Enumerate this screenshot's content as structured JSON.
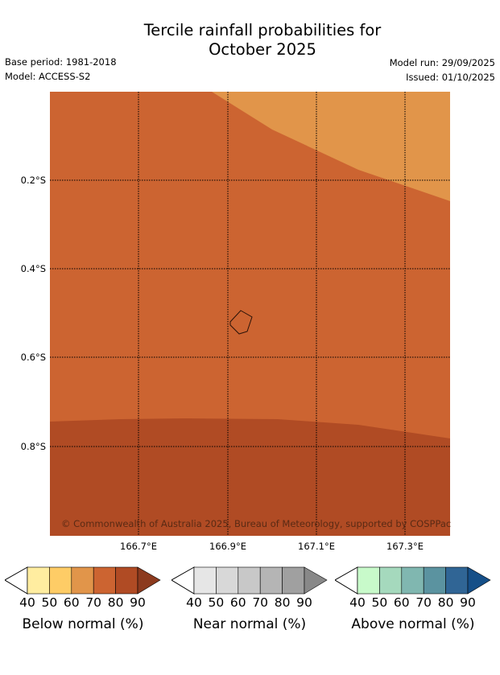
{
  "title_line1": "Tercile rainfall probabilities for",
  "title_line2": "October 2025",
  "base_period": "Base period: 1981-2018",
  "model": "Model: ACCESS-S2",
  "model_run": "Model run: 29/09/2025",
  "issued": "Issued: 01/10/2025",
  "lat_labels": [
    "0.2°S",
    "0.4°S",
    "0.6°S",
    "0.8°S"
  ],
  "lon_labels": [
    "166.7°E",
    "166.9°E",
    "167.1°E",
    "167.3°E"
  ],
  "copyright": "© Commonwealth of Australia 2025, Bureau of Meteorology, supported by COSPPac",
  "colors": {
    "below_60_70": "#E1954A",
    "below_70_80": "#CC6431",
    "below_80_90": "#B04B24"
  },
  "colorbars": [
    {
      "label": "Below normal (%)",
      "ticks": [
        "40",
        "50",
        "60",
        "70",
        "80",
        "90"
      ],
      "colors": [
        "#FFEDA0",
        "#FECC66",
        "#E1954A",
        "#CC6431",
        "#B04B24",
        "#8C3A1E"
      ]
    },
    {
      "label": "Near normal (%)",
      "ticks": [
        "40",
        "50",
        "60",
        "70",
        "80",
        "90"
      ],
      "colors": [
        "#E6E6E6",
        "#D8D8D8",
        "#C8C8C8",
        "#B5B5B5",
        "#A0A0A0",
        "#888888"
      ]
    },
    {
      "label": "Above normal (%)",
      "ticks": [
        "40",
        "50",
        "60",
        "70",
        "80",
        "90"
      ],
      "colors": [
        "#C8FACA",
        "#A5D9BD",
        "#80B7B0",
        "#5B93A0",
        "#306595",
        "#154F88"
      ]
    }
  ]
}
